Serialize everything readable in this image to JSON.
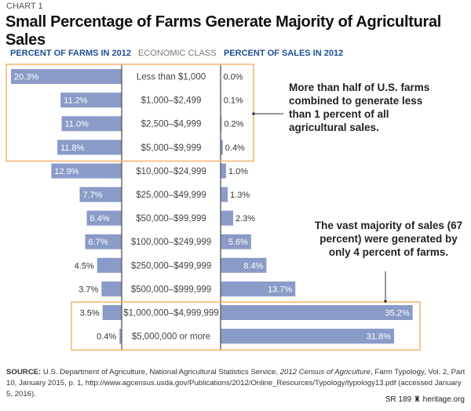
{
  "kicker": "CHART 1",
  "title": "Small Percentage of Farms Generate Majority of Agricultural Sales",
  "chart_data": {
    "type": "bar",
    "orientation": "horizontal, back-to-back",
    "title": "Small Percentage of Farms Generate Majority of Agricultural Sales",
    "category_header": "ECONOMIC CLASS",
    "categories": [
      "Less than $1,000",
      "$1,000–$2,499",
      "$2,500–$4,999",
      "$5,000–$9,999",
      "$10,000–$24,999",
      "$25,000–$49,999",
      "$50,000–$99,999",
      "$100,000–$249,999",
      "$250,000–$499,999",
      "$500,000–$999,999",
      "$1,000,000–$4,999,999",
      "$5,000,000 or more"
    ],
    "series": [
      {
        "name": "PERCENT OF FARMS IN 2012",
        "values": [
          20.3,
          11.2,
          11.0,
          11.8,
          12.9,
          7.7,
          6.4,
          6.7,
          4.5,
          3.7,
          3.5,
          0.4
        ],
        "labels": [
          "20.3%",
          "11.2%",
          "11.0%",
          "11.8%",
          "12.9%",
          "7.7%",
          "6.4%",
          "6.7%",
          "4.5%",
          "3.7%",
          "3.5%",
          "0.4%"
        ]
      },
      {
        "name": "PERCENT OF SALES IN 2012",
        "values": [
          0.0,
          0.1,
          0.2,
          0.4,
          1.0,
          1.3,
          2.3,
          5.6,
          8.4,
          13.7,
          35.2,
          31.8
        ],
        "labels": [
          "0.0%",
          "0.1%",
          "0.2%",
          "0.4%",
          "1.0%",
          "1.3%",
          "2.3%",
          "5.6%",
          "8.4%",
          "13.7%",
          "35.2%",
          "31.8%"
        ]
      }
    ],
    "colors": {
      "bar": "#8a9bc8",
      "highlight": "#f7b46a",
      "header": "#1f4e8f"
    },
    "annotations": [
      {
        "text": "More than half of U.S. farms combined to generate less than 1 percent of all agricultural sales.",
        "highlights_rows": [
          0,
          1,
          2,
          3
        ]
      },
      {
        "text": "The vast majority of sales (67 percent) were generated by only 4 percent of farms.",
        "highlights_rows": [
          10,
          11
        ]
      }
    ]
  },
  "source": {
    "label": "SOURCE:",
    "pre": " U.S. Department of Agriculture, National Agricultural Statistics Service, ",
    "italic": "2012 Census of Agriculture",
    "post": ", Farm Typology, Vol. 2, Part 10, January 2015, p. 1, http://www.agcensus.usda.gov/Publications/2012/Online_Resources/Typology/typology13.pdf (accessed January 5, 2016)."
  },
  "footer": "SR 189 ♜ heritage.org"
}
